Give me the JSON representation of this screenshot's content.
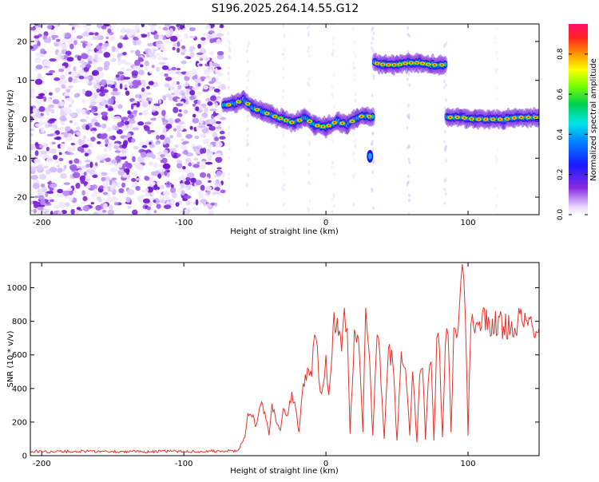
{
  "title": "S196.2025.264.14.55.G12",
  "chart_data": [
    {
      "type": "heatmap",
      "xlabel": "Height of straight line (km)",
      "ylabel": "Frequency (Hz)",
      "xlim": [
        -208,
        150
      ],
      "ylim": [
        -24.5,
        24.5
      ],
      "xticks": [
        -200,
        -100,
        0,
        100
      ],
      "yticks": [
        -20,
        -10,
        0,
        10,
        20
      ],
      "colorbar": {
        "label": "Normalized spectral amplitude",
        "range": [
          0,
          0.95
        ],
        "ticks": [
          0.0,
          0.2,
          0.4,
          0.6,
          0.8
        ]
      },
      "noise_region_x": [
        -208,
        -72
      ],
      "ridge": [
        {
          "x": -72,
          "freq": 3.5
        },
        {
          "x": -65,
          "freq": 4.0
        },
        {
          "x": -58,
          "freq": 5.0
        },
        {
          "x": -52,
          "freq": 3.0
        },
        {
          "x": -45,
          "freq": 2.0
        },
        {
          "x": -38,
          "freq": 1.0
        },
        {
          "x": -30,
          "freq": 0.0
        },
        {
          "x": -22,
          "freq": -1.0
        },
        {
          "x": -15,
          "freq": 0.5
        },
        {
          "x": -8,
          "freq": -1.5
        },
        {
          "x": 0,
          "freq": -2.0
        },
        {
          "x": 8,
          "freq": -0.5
        },
        {
          "x": 15,
          "freq": -1.5
        },
        {
          "x": 22,
          "freq": 0.5
        },
        {
          "x": 28,
          "freq": 1.0
        },
        {
          "x": 33,
          "freq": 0.5
        },
        {
          "x": 34,
          "freq": 14.5
        },
        {
          "x": 42,
          "freq": 14.0
        },
        {
          "x": 50,
          "freq": 14.0
        },
        {
          "x": 58,
          "freq": 14.5
        },
        {
          "x": 66,
          "freq": 14.5
        },
        {
          "x": 74,
          "freq": 14.0
        },
        {
          "x": 84,
          "freq": 14.0
        },
        {
          "x": 85,
          "freq": 0.5
        },
        {
          "x": 95,
          "freq": 0.5
        },
        {
          "x": 105,
          "freq": 0.0
        },
        {
          "x": 115,
          "freq": 0.0
        },
        {
          "x": 125,
          "freq": 0.0
        },
        {
          "x": 135,
          "freq": 0.5
        },
        {
          "x": 150,
          "freq": 0.5
        }
      ]
    },
    {
      "type": "line",
      "xlabel": "Height of straight line (km)",
      "ylabel": "SNR (10 * v/v)",
      "xlim": [
        -208,
        150
      ],
      "ylim": [
        0,
        1150
      ],
      "xticks": [
        -200,
        -100,
        0,
        100
      ],
      "yticks": [
        0,
        200,
        400,
        600,
        800,
        1000
      ],
      "series": [
        {
          "name": "SNR",
          "color": "#e8312a",
          "x": [
            -208,
            -190,
            -170,
            -150,
            -130,
            -110,
            -90,
            -70,
            -62,
            -57,
            -55,
            -52,
            -49,
            -46,
            -43,
            -40,
            -38,
            -35,
            -32,
            -30,
            -27,
            -24,
            -22,
            -19,
            -16,
            -13,
            -10,
            -8,
            -6,
            -4,
            -2,
            0,
            2,
            5,
            8,
            11,
            13,
            15,
            17,
            20,
            23,
            26,
            28,
            30,
            33,
            36,
            38,
            41,
            44,
            47,
            50,
            53,
            56,
            59,
            61,
            64,
            66,
            68,
            70,
            72,
            74,
            76,
            78,
            80,
            82,
            84,
            86,
            88,
            90,
            92,
            94,
            96,
            98,
            100,
            102,
            104,
            108,
            115,
            125,
            135,
            145,
            150
          ],
          "values": [
            25,
            24,
            26,
            25,
            24,
            26,
            25,
            27,
            30,
            110,
            250,
            230,
            180,
            300,
            260,
            120,
            310,
            200,
            150,
            280,
            240,
            380,
            320,
            140,
            430,
            520,
            470,
            720,
            650,
            380,
            420,
            600,
            360,
            760,
            820,
            620,
            880,
            760,
            130,
            750,
            690,
            140,
            880,
            650,
            120,
            720,
            600,
            100,
            640,
            560,
            90,
            620,
            520,
            120,
            500,
            80,
            480,
            520,
            95,
            440,
            560,
            90,
            700,
            620,
            110,
            660,
            720,
            140,
            760,
            700,
            900,
            1140,
            850,
            120,
            780,
            760,
            800,
            790,
            770,
            800,
            780,
            760
          ]
        }
      ]
    }
  ]
}
